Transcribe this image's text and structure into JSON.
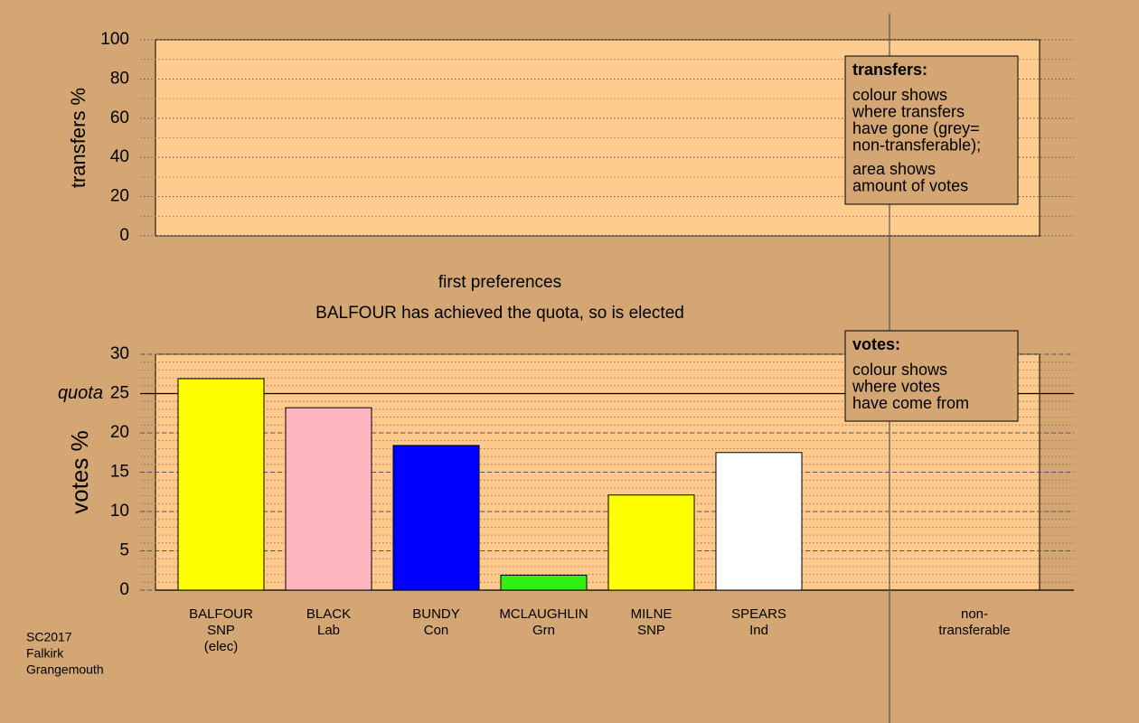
{
  "chart_data": [
    {
      "type": "bar",
      "ylabel": "transfers %",
      "ylim": [
        0,
        100
      ],
      "yticks": [
        0,
        20,
        40,
        60,
        80,
        100
      ],
      "minor_grid_step": 10,
      "legend": {
        "title": "transfers:",
        "paragraphs": [
          [
            "colour shows",
            "where transfers",
            "have gone (grey=",
            "non-transferable);"
          ],
          [
            "area shows",
            "amount of votes"
          ]
        ]
      }
    },
    {
      "type": "bar",
      "title": "first preferences",
      "subtitle": "BALFOUR has achieved the quota, so is elected",
      "ylabel": "votes %",
      "categories": [
        [
          "BALFOUR",
          "SNP",
          "(elec)"
        ],
        [
          "BLACK",
          "Lab"
        ],
        [
          "BUNDY",
          "Con"
        ],
        [
          "MCLAUGHLIN",
          "Grn"
        ],
        [
          "MILNE",
          "SNP"
        ],
        [
          "SPEARS",
          "Ind"
        ],
        null,
        [
          "non-",
          "transferable"
        ]
      ],
      "values": [
        26.9,
        23.2,
        18.4,
        1.9,
        12.1,
        17.5,
        null,
        null
      ],
      "colors": [
        "#ffff00",
        "#ffb6c1",
        "#0000ff",
        "#33ee11",
        "#ffff00",
        "#ffffff",
        null,
        null
      ],
      "ylim": [
        0,
        30
      ],
      "yticks": [
        0,
        5,
        10,
        15,
        20,
        25,
        30
      ],
      "minor_grid_step": 1,
      "reference_line": {
        "label": "quota",
        "value": 25
      },
      "legend": {
        "title": "votes:",
        "paragraphs": [
          [
            "colour shows",
            "where votes",
            "have come from"
          ]
        ]
      }
    }
  ],
  "source": [
    "SC2017",
    "Falkirk",
    "Grangemouth"
  ]
}
